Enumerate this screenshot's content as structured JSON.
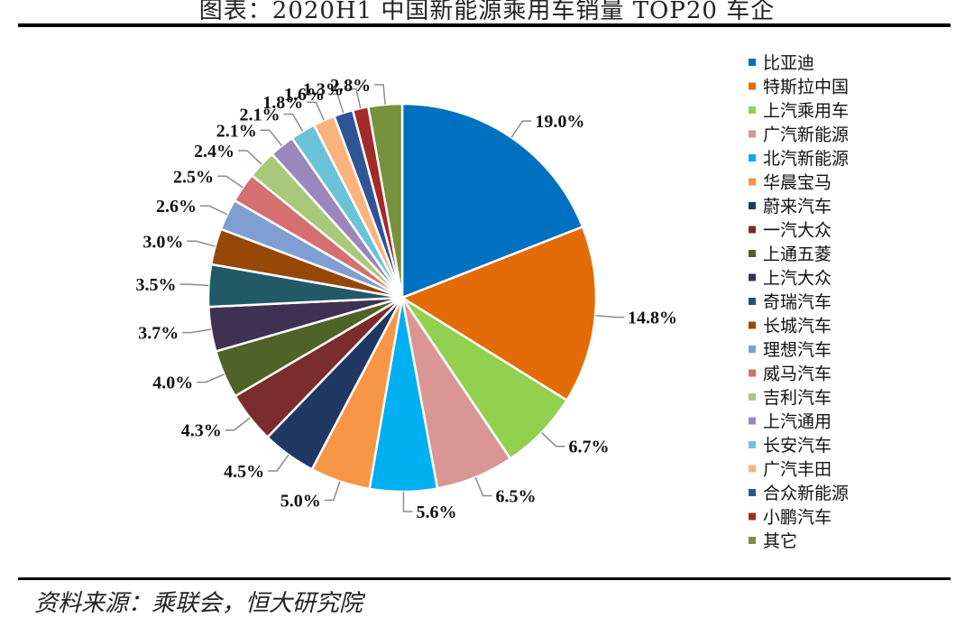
{
  "header": {
    "title": "图表：2020H1 中国新能源乘用车销量 TOP20 车企"
  },
  "footer": {
    "source": "资料来源：乘联会，恒大研究院"
  },
  "chart_data": {
    "type": "pie",
    "title": "图表：2020H1 中国新能源乘用车销量 TOP20 车企",
    "unit": "%",
    "legend_position": "right",
    "slices": [
      {
        "name": "比亚迪",
        "value": 19.0,
        "label": "19.0%",
        "color": "#0070C0"
      },
      {
        "name": "特斯拉中国",
        "value": 14.8,
        "label": "14.8%",
        "color": "#E36C09"
      },
      {
        "name": "上汽乘用车",
        "value": 6.7,
        "label": "6.7%",
        "color": "#92D050"
      },
      {
        "name": "广汽新能源",
        "value": 6.5,
        "label": "6.5%",
        "color": "#DA9694"
      },
      {
        "name": "北汽新能源",
        "value": 5.6,
        "label": "5.6%",
        "color": "#00B0F0"
      },
      {
        "name": "华晨宝马",
        "value": 5.0,
        "label": "5.0%",
        "color": "#F79646"
      },
      {
        "name": "蔚来汽车",
        "value": 4.5,
        "label": "4.5%",
        "color": "#1F3864"
      },
      {
        "name": "一汽大众",
        "value": 4.3,
        "label": "4.3%",
        "color": "#7B2C2C"
      },
      {
        "name": "上通五菱",
        "value": 4.0,
        "label": "4.0%",
        "color": "#4F6228"
      },
      {
        "name": "上汽大众",
        "value": 3.7,
        "label": "3.7%",
        "color": "#3F3151"
      },
      {
        "name": "奇瑞汽车",
        "value": 3.5,
        "label": "3.5%",
        "color": "#215967"
      },
      {
        "name": "长城汽车",
        "value": 3.0,
        "label": "3.0%",
        "color": "#974806"
      },
      {
        "name": "理想汽车",
        "value": 2.6,
        "label": "2.6%",
        "color": "#7F9FD3"
      },
      {
        "name": "威马汽车",
        "value": 2.5,
        "label": "2.5%",
        "color": "#D47070"
      },
      {
        "name": "吉利汽车",
        "value": 2.4,
        "label": "2.4%",
        "color": "#A9C97A"
      },
      {
        "name": "上汽通用",
        "value": 2.1,
        "label": "2.1%",
        "color": "#9C86BE"
      },
      {
        "name": "长安汽车",
        "value": 2.1,
        "label": "2.1%",
        "color": "#6CC3D9"
      },
      {
        "name": "广汽丰田",
        "value": 1.8,
        "label": "1.8%",
        "color": "#FAB37C"
      },
      {
        "name": "合众新能源",
        "value": 1.6,
        "label": "1.6%",
        "color": "#2F5597"
      },
      {
        "name": "小鹏汽车",
        "value": 1.3,
        "label": "1.3%",
        "color": "#A52A2A"
      },
      {
        "name": "其它",
        "value": 2.8,
        "label": "2.8%",
        "color": "#76923C"
      }
    ]
  }
}
